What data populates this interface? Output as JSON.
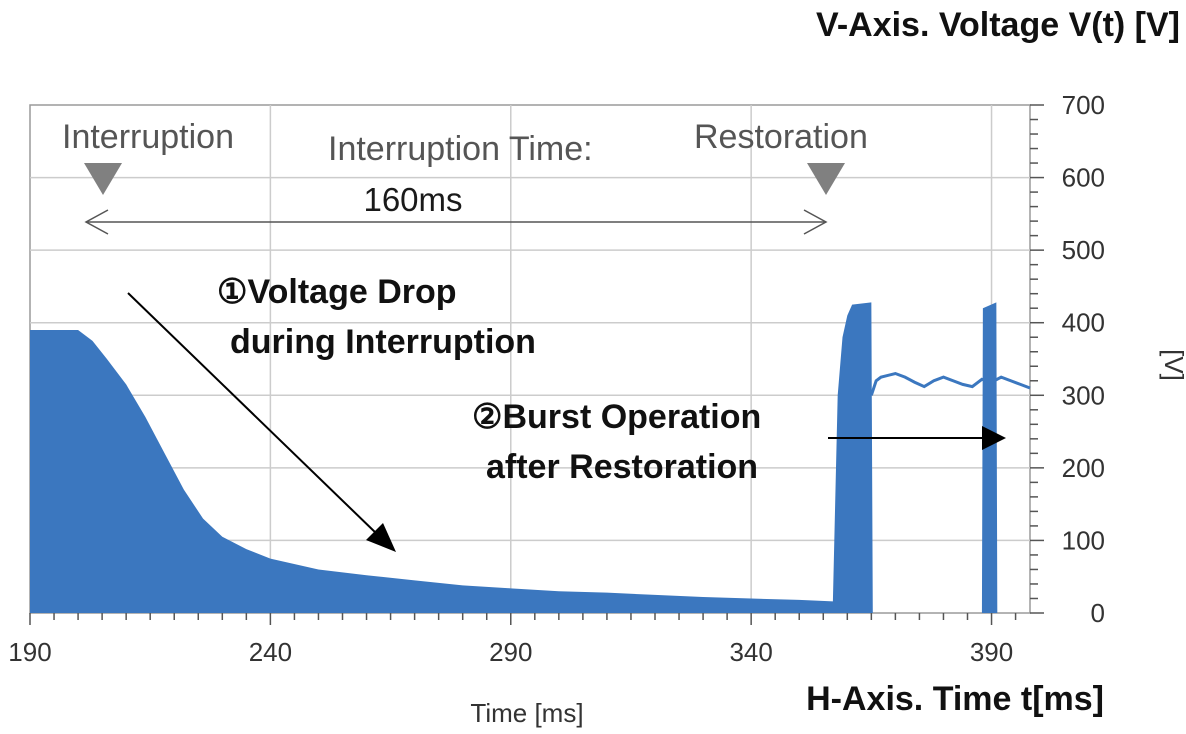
{
  "chart_data": {
    "type": "area",
    "title": "",
    "xlabel": "Time [ms]",
    "ylabel": "[V]",
    "right_axis_title": "V-Axis. Voltage V(t) [V]",
    "bottom_axis_title": "H-Axis. Time t[ms]",
    "xlim": [
      190,
      398
    ],
    "ylim": [
      0,
      700
    ],
    "x_ticks": [
      190,
      240,
      290,
      340,
      390
    ],
    "y_ticks": [
      0,
      100,
      200,
      300,
      400,
      500,
      600,
      700
    ],
    "grid": true,
    "legend": "none",
    "series": [
      {
        "values_envelope": [
          [
            190,
            390
          ],
          [
            200,
            390
          ],
          [
            203,
            375
          ],
          [
            206,
            350
          ],
          [
            210,
            315
          ],
          [
            214,
            270
          ],
          [
            218,
            220
          ],
          [
            222,
            170
          ],
          [
            226,
            130
          ],
          [
            230,
            105
          ],
          [
            235,
            88
          ],
          [
            240,
            75
          ],
          [
            250,
            60
          ],
          [
            260,
            52
          ],
          [
            270,
            45
          ],
          [
            280,
            38
          ],
          [
            290,
            34
          ],
          [
            300,
            30
          ],
          [
            310,
            28
          ],
          [
            320,
            25
          ],
          [
            330,
            22
          ],
          [
            340,
            20
          ],
          [
            350,
            18
          ],
          [
            357,
            16
          ],
          [
            358,
            300
          ],
          [
            359,
            380
          ],
          [
            360,
            410
          ],
          [
            361,
            425
          ],
          [
            365,
            428
          ],
          [
            365.3,
            0
          ],
          [
            388,
            0
          ],
          [
            388.2,
            420
          ],
          [
            391,
            428
          ],
          [
            391.2,
            0
          ],
          [
            398,
            0
          ]
        ],
        "line_segment": [
          [
            365,
            300
          ],
          [
            366,
            320
          ],
          [
            367,
            325
          ],
          [
            370,
            330
          ],
          [
            372,
            325
          ],
          [
            374,
            318
          ],
          [
            376,
            312
          ],
          [
            378,
            320
          ],
          [
            380,
            325
          ],
          [
            382,
            320
          ],
          [
            384,
            315
          ],
          [
            386,
            312
          ],
          [
            388,
            322
          ],
          [
            390,
            318
          ],
          [
            392,
            325
          ],
          [
            394,
            320
          ],
          [
            396,
            315
          ],
          [
            398,
            310
          ]
        ],
        "color": "#3b77bf"
      }
    ],
    "annotations": {
      "interruption_label": "Interruption",
      "restoration_label": "Restoration",
      "interruption_time_label": "Interruption Time:",
      "interruption_time_value": "160ms",
      "interruption_start_ms": 200,
      "restoration_ms": 358,
      "note1_line1": "①Voltage Drop",
      "note1_line2": "during Interruption",
      "note2_line1": "②Burst Operation",
      "note2_line2": "after Restoration"
    },
    "colors": {
      "fill": "#3b77bf",
      "grid": "#cccccc",
      "marker": "#808080"
    }
  }
}
